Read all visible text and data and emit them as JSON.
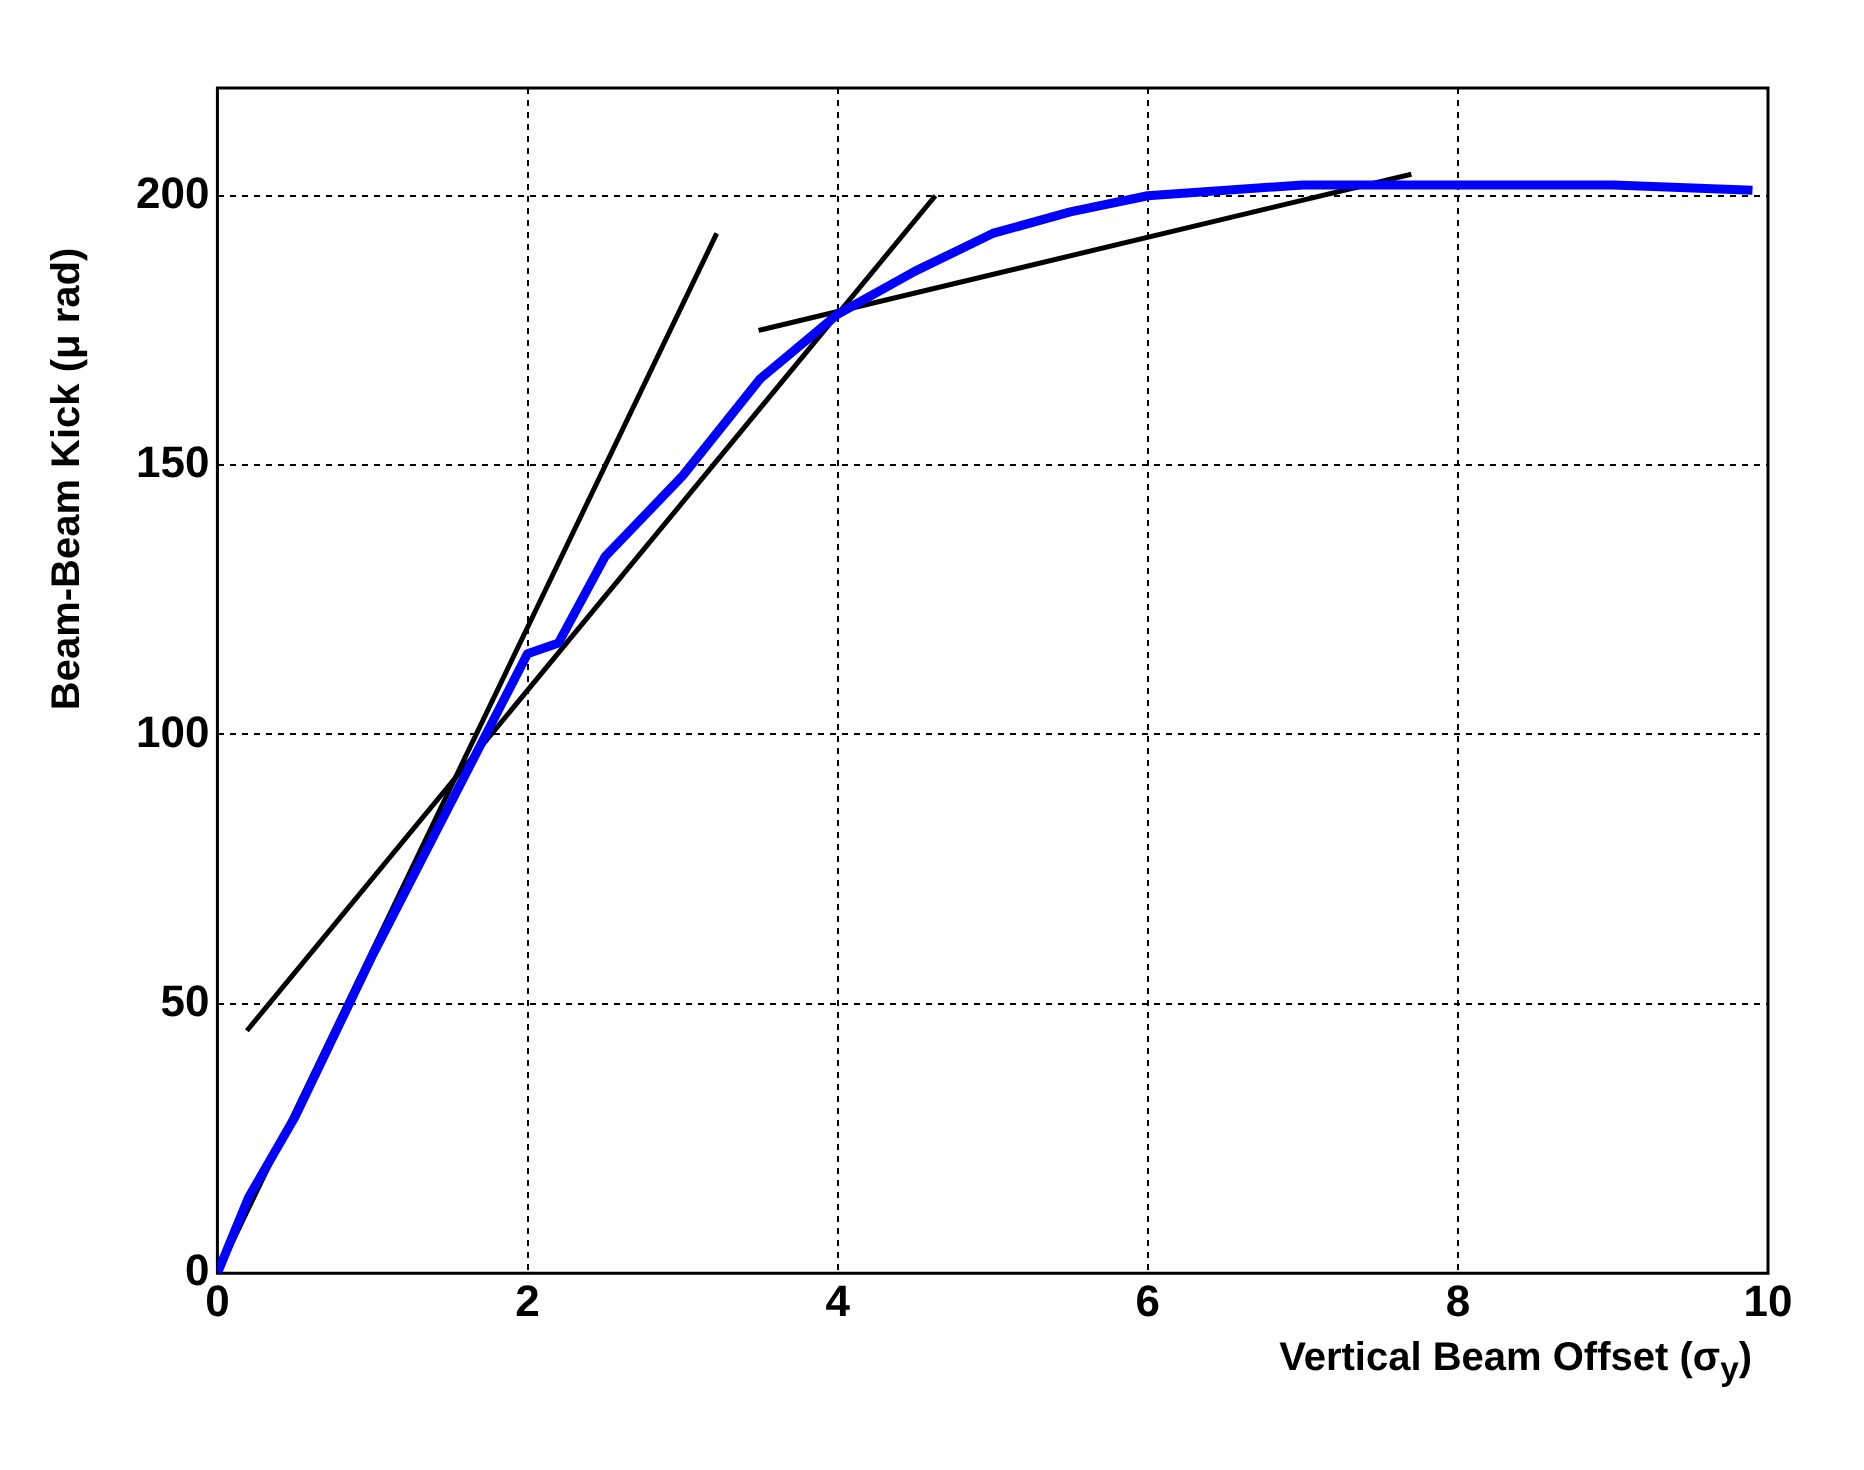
{
  "chart_data": {
    "type": "line",
    "xlabel": "Vertical Beam Offset (σ$_{y}$)",
    "ylabel": "Beam-Beam Kick (μ rad)",
    "xlim": [
      0,
      10
    ],
    "ylim": [
      0,
      220
    ],
    "xticks": [
      0,
      2,
      4,
      6,
      8,
      10
    ],
    "yticks": [
      0,
      50,
      100,
      150,
      200
    ],
    "grid": true,
    "legend": false,
    "marker": "none",
    "line_style": "solid",
    "series": [
      {
        "color": "#0000ff",
        "x": [
          0,
          0.2,
          0.5,
          1,
          1.5,
          2,
          2.2,
          2.5,
          3,
          3.5,
          4,
          4.5,
          5,
          5.5,
          6,
          7,
          8,
          9,
          9.9
        ],
        "values": [
          0,
          14,
          29,
          59,
          87,
          115,
          117,
          133,
          148,
          166,
          178,
          186,
          193,
          197,
          200,
          202,
          202,
          202,
          201
        ]
      },
      {
        "type": "line",
        "color": "#000000",
        "x": [
          0,
          3.22
        ],
        "values": [
          0,
          193
        ]
      },
      {
        "type": "line",
        "color": "#000000",
        "x": [
          0.19,
          4.63
        ],
        "values": [
          45,
          200
        ]
      },
      {
        "type": "line",
        "color": "#000000",
        "x": [
          3.49,
          7.7
        ],
        "values": [
          175,
          204
        ]
      }
    ]
  }
}
